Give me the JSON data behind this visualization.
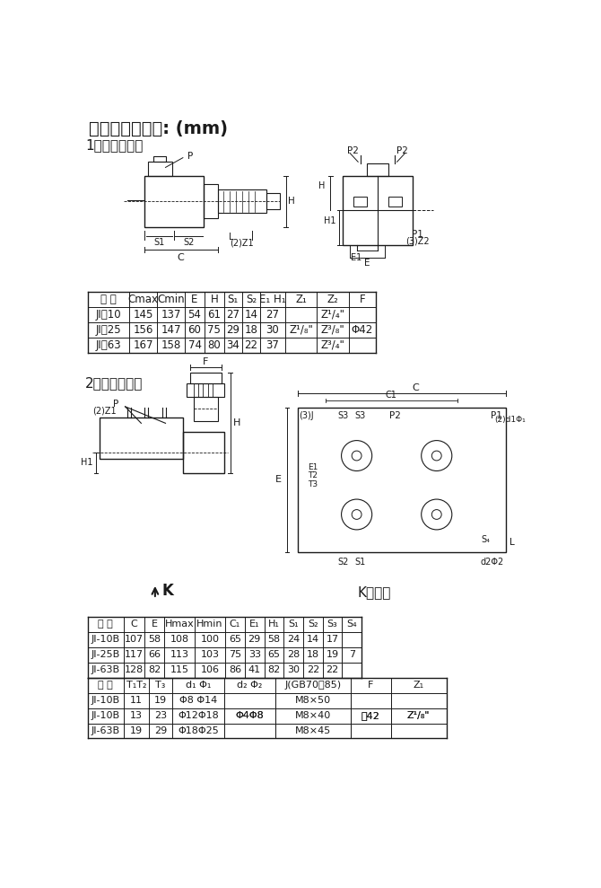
{
  "title": "外形及安装尺寸: (mm)",
  "section1": "1、螺纹连接：",
  "section2": "2、板式连接：",
  "k_label": "K",
  "k_view_label": "K向视图",
  "table1_headers": [
    "型 号",
    "Cmax",
    "Cmin",
    "E",
    "H",
    "S₁",
    "S₂",
    "E₁ H₁",
    "Z₁",
    "Z₂",
    "F"
  ],
  "table1_rows": [
    [
      "JI－10",
      "145",
      "137",
      "54",
      "61",
      "27",
      "14",
      "27",
      "",
      "Z¹/₄\"",
      ""
    ],
    [
      "JI－25",
      "156",
      "147",
      "60",
      "75",
      "29",
      "18",
      "30",
      "Z¹/₈\"",
      "Z³/₈\"",
      "Φ42"
    ],
    [
      "JI－63",
      "167",
      "158",
      "74",
      "80",
      "34",
      "22",
      "37",
      "",
      "Z³/₄\"",
      ""
    ]
  ],
  "table2_headers1": [
    "型 号",
    "C",
    "E",
    "Hmax",
    "Hmin",
    "C₁",
    "E₁",
    "H₁",
    "S₁",
    "S₂",
    "S₃",
    "S₄"
  ],
  "table2_rows1": [
    [
      "JI-10B",
      "107",
      "58",
      "108",
      "100",
      "65",
      "29",
      "58",
      "24",
      "14",
      "17",
      ""
    ],
    [
      "JI-25B",
      "117",
      "66",
      "113",
      "103",
      "75",
      "33",
      "65",
      "28",
      "18",
      "19",
      "7"
    ],
    [
      "JI-63B",
      "128",
      "82",
      "115",
      "106",
      "86",
      "41",
      "82",
      "30",
      "22",
      "22",
      ""
    ]
  ],
  "table2_headers2": [
    "型 号",
    "T₁T₂",
    "T₃",
    "d₁ Φ₁",
    "d₂ Φ₂",
    "J(GB70－85)",
    "F",
    "Z₁"
  ],
  "table2_rows2": [
    [
      "JI-10B",
      "11",
      "19",
      "Φ8 Φ14",
      "",
      "M8×50",
      "",
      ""
    ],
    [
      "JI-10B",
      "13",
      "23",
      "Φ12Φ18",
      "Φ4Φ8",
      "M8×40",
      "΢42",
      "Z¹/₈\""
    ],
    [
      "JI-63B",
      "19",
      "29",
      "Φ18Φ25",
      "",
      "M8×45",
      "",
      ""
    ]
  ],
  "bg_color": "#ffffff",
  "line_color": "#1a1a1a",
  "font_size": 9
}
